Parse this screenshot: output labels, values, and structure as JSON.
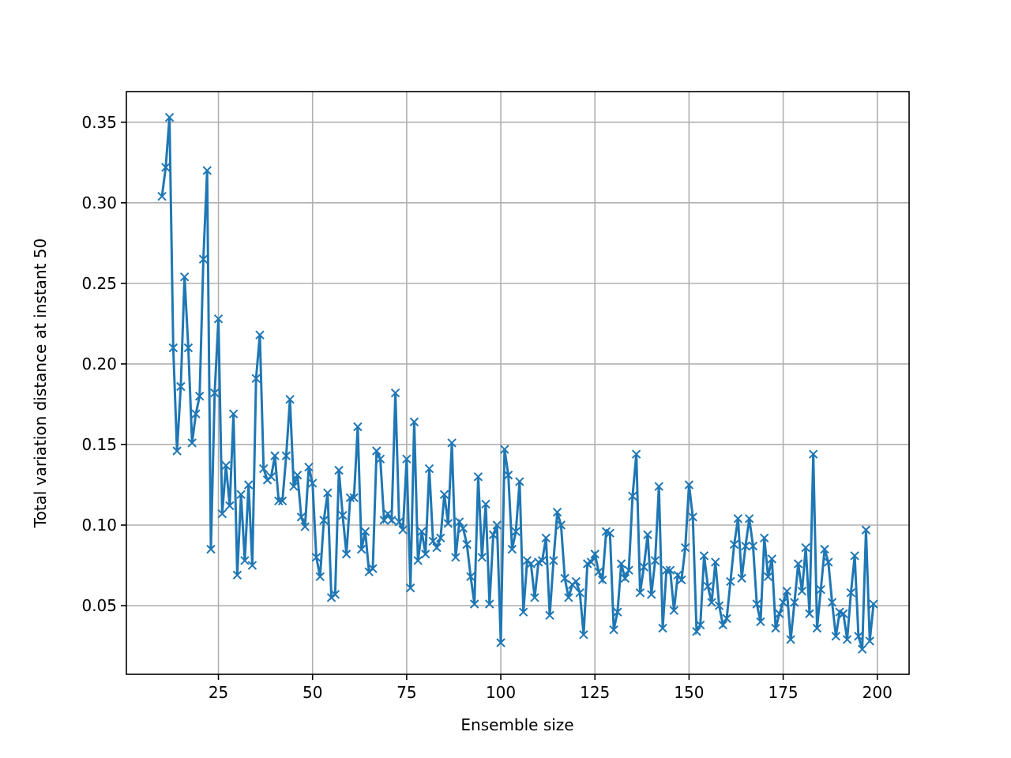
{
  "chart_data": {
    "type": "line",
    "x_label": "Ensemble size",
    "y_label": "Total variation distance at instant 50",
    "x": [
      10,
      11,
      12,
      13,
      14,
      15,
      16,
      17,
      18,
      19,
      20,
      21,
      22,
      23,
      24,
      25,
      26,
      27,
      28,
      29,
      30,
      31,
      32,
      33,
      34,
      35,
      36,
      37,
      38,
      39,
      40,
      41,
      42,
      43,
      44,
      45,
      46,
      47,
      48,
      49,
      50,
      51,
      52,
      53,
      54,
      55,
      56,
      57,
      58,
      59,
      60,
      61,
      62,
      63,
      64,
      65,
      66,
      67,
      68,
      69,
      70,
      71,
      72,
      73,
      74,
      75,
      76,
      77,
      78,
      79,
      80,
      81,
      82,
      83,
      84,
      85,
      86,
      87,
      88,
      89,
      90,
      91,
      92,
      93,
      94,
      95,
      96,
      97,
      98,
      99,
      100,
      101,
      102,
      103,
      104,
      105,
      106,
      107,
      108,
      109,
      110,
      111,
      112,
      113,
      114,
      115,
      116,
      117,
      118,
      119,
      120,
      121,
      122,
      123,
      124,
      125,
      126,
      127,
      128,
      129,
      130,
      131,
      132,
      133,
      134,
      135,
      136,
      137,
      138,
      139,
      140,
      141,
      142,
      143,
      144,
      145,
      146,
      147,
      148,
      149,
      150,
      151,
      152,
      153,
      154,
      155,
      156,
      157,
      158,
      159,
      160,
      161,
      162,
      163,
      164,
      165,
      166,
      167,
      168,
      169,
      170,
      171,
      172,
      173,
      174,
      175,
      176,
      177,
      178,
      179,
      180,
      181,
      182,
      183,
      184,
      185,
      186,
      187,
      188,
      189,
      190,
      191,
      192,
      193,
      194,
      195,
      196,
      197,
      198,
      199
    ],
    "series": [
      {
        "color": "#1f77b4",
        "marker": "x",
        "values": [
          0.304,
          0.322,
          0.353,
          0.21,
          0.146,
          0.186,
          0.254,
          0.21,
          0.151,
          0.169,
          0.18,
          0.265,
          0.32,
          0.085,
          0.182,
          0.228,
          0.107,
          0.137,
          0.112,
          0.169,
          0.069,
          0.119,
          0.078,
          0.125,
          0.075,
          0.191,
          0.218,
          0.135,
          0.128,
          0.13,
          0.143,
          0.115,
          0.115,
          0.143,
          0.178,
          0.124,
          0.131,
          0.105,
          0.099,
          0.136,
          0.126,
          0.08,
          0.068,
          0.103,
          0.12,
          0.055,
          0.057,
          0.134,
          0.106,
          0.082,
          0.117,
          0.117,
          0.161,
          0.085,
          0.096,
          0.071,
          0.073,
          0.146,
          0.141,
          0.103,
          0.107,
          0.103,
          0.182,
          0.102,
          0.097,
          0.141,
          0.061,
          0.164,
          0.078,
          0.096,
          0.082,
          0.135,
          0.09,
          0.086,
          0.092,
          0.119,
          0.101,
          0.151,
          0.08,
          0.102,
          0.098,
          0.088,
          0.068,
          0.051,
          0.13,
          0.08,
          0.113,
          0.051,
          0.094,
          0.1,
          0.027,
          0.147,
          0.131,
          0.085,
          0.096,
          0.127,
          0.046,
          0.078,
          0.076,
          0.055,
          0.077,
          0.078,
          0.092,
          0.044,
          0.078,
          0.108,
          0.1,
          0.067,
          0.055,
          0.063,
          0.065,
          0.058,
          0.032,
          0.076,
          0.077,
          0.082,
          0.071,
          0.066,
          0.096,
          0.095,
          0.035,
          0.046,
          0.076,
          0.067,
          0.072,
          0.118,
          0.144,
          0.058,
          0.074,
          0.094,
          0.057,
          0.078,
          0.124,
          0.036,
          0.072,
          0.072,
          0.047,
          0.069,
          0.066,
          0.086,
          0.125,
          0.105,
          0.034,
          0.038,
          0.081,
          0.062,
          0.052,
          0.077,
          0.05,
          0.038,
          0.042,
          0.065,
          0.088,
          0.104,
          0.067,
          0.087,
          0.104,
          0.087,
          0.051,
          0.04,
          0.092,
          0.068,
          0.079,
          0.036,
          0.045,
          0.052,
          0.059,
          0.029,
          0.052,
          0.076,
          0.059,
          0.086,
          0.045,
          0.144,
          0.036,
          0.06,
          0.085,
          0.077,
          0.052,
          0.031,
          0.046,
          0.045,
          0.029,
          0.058,
          0.081,
          0.031,
          0.023,
          0.097,
          0.028,
          0.051
        ]
      }
    ],
    "xlim": [
      0.55,
      208.45
    ],
    "xticks": [
      25,
      50,
      75,
      100,
      125,
      150,
      175,
      200
    ],
    "ylim": [
      0.0074,
      0.369
    ],
    "yticks": [
      0.05,
      {
        "value": 0.1,
        "label": "0.10"
      },
      0.15,
      {
        "value": 0.2,
        "label": "0.20"
      },
      0.25,
      {
        "value": 0.3,
        "label": "0.30"
      },
      0.35
    ],
    "grid": true
  }
}
